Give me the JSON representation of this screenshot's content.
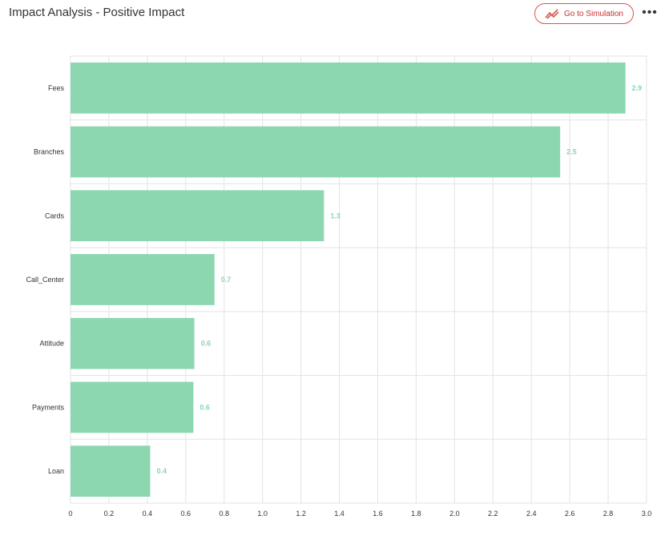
{
  "header": {
    "title": "Impact Analysis - Positive Impact",
    "simulation_button": "Go to Simulation",
    "more_menu": "•••"
  },
  "colors": {
    "bar": "#8cd7b0",
    "label": "#8bd6b0",
    "button_accent": "#d9534f"
  },
  "icons": {
    "simulation": "trend-lines-icon",
    "more": "more-dots-icon"
  },
  "chart_data": {
    "type": "bar",
    "orientation": "horizontal",
    "title": "",
    "xlabel": "",
    "ylabel": "",
    "categories": [
      "Fees",
      "Branches",
      "Cards",
      "Call_Center",
      "Attitude",
      "Payments",
      "Loan"
    ],
    "values": [
      2.89,
      2.55,
      1.32,
      0.75,
      0.645,
      0.64,
      0.415
    ],
    "data_labels": [
      "2.9",
      "2.5",
      "1.3",
      "0.7",
      "0.6",
      "0.6",
      "0.4"
    ],
    "xlim": [
      0,
      3.0
    ],
    "x_ticks": [
      "0",
      "0.2",
      "0.4",
      "0.6",
      "0.8",
      "1.0",
      "1.2",
      "1.4",
      "1.6",
      "1.8",
      "2.0",
      "2.2",
      "2.4",
      "2.6",
      "2.8",
      "3.0"
    ],
    "grid": true,
    "legend": "none"
  }
}
